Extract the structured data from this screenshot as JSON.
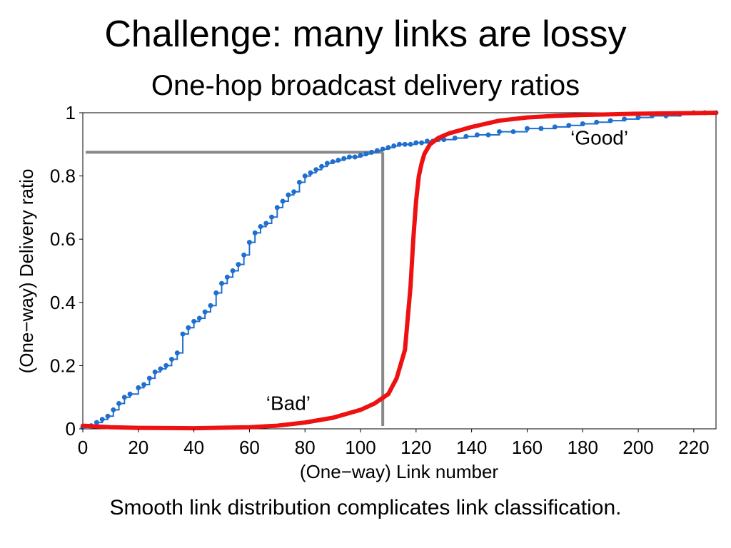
{
  "slide": {
    "title": "Challenge: many links are lossy",
    "subtitle": "One-hop broadcast delivery ratios",
    "caption": "Smooth link distribution complicates link classification."
  },
  "chart_data": {
    "type": "line",
    "xlabel": "(One−way) Link number",
    "ylabel": "(One−way) Delivery ratio",
    "xlim": [
      0,
      228
    ],
    "ylim": [
      0,
      1
    ],
    "xticks": [
      "0",
      "20",
      "40",
      "60",
      "80",
      "100",
      "120",
      "140",
      "160",
      "180",
      "200",
      "220"
    ],
    "yticks": [
      "0",
      "0.2",
      "0.4",
      "0.6",
      "0.8",
      "1"
    ],
    "grid": false,
    "colors": {
      "measured": "#1f6fcf",
      "ideal": "#ee1111",
      "marker": "#888888"
    },
    "series": [
      {
        "name": "",
        "style": "step-dots",
        "x": [
          0,
          3,
          5,
          7,
          9,
          11,
          13,
          15,
          17,
          20,
          22,
          24,
          26,
          28,
          30,
          32,
          34,
          36,
          38,
          40,
          42,
          44,
          46,
          48,
          50,
          52,
          54,
          56,
          58,
          60,
          62,
          64,
          66,
          68,
          70,
          72,
          74,
          76,
          78,
          80,
          82,
          84,
          86,
          88,
          90,
          92,
          94,
          96,
          98,
          100,
          102,
          104,
          106,
          108,
          110,
          112,
          114,
          116,
          118,
          120,
          122,
          124,
          126,
          128,
          130,
          134,
          138,
          142,
          146,
          150,
          155,
          160,
          165,
          170,
          175,
          180,
          185,
          190,
          195,
          200,
          205,
          210,
          215,
          220,
          224,
          228
        ],
        "y": [
          0.005,
          0.01,
          0.02,
          0.03,
          0.04,
          0.06,
          0.08,
          0.1,
          0.11,
          0.13,
          0.14,
          0.16,
          0.18,
          0.19,
          0.2,
          0.22,
          0.24,
          0.3,
          0.32,
          0.34,
          0.35,
          0.37,
          0.39,
          0.43,
          0.46,
          0.48,
          0.5,
          0.52,
          0.55,
          0.59,
          0.62,
          0.64,
          0.65,
          0.67,
          0.7,
          0.72,
          0.74,
          0.75,
          0.78,
          0.8,
          0.81,
          0.82,
          0.83,
          0.84,
          0.845,
          0.85,
          0.855,
          0.86,
          0.86,
          0.865,
          0.87,
          0.875,
          0.88,
          0.885,
          0.89,
          0.895,
          0.9,
          0.9,
          0.9,
          0.905,
          0.905,
          0.91,
          0.91,
          0.915,
          0.915,
          0.92,
          0.925,
          0.93,
          0.93,
          0.94,
          0.94,
          0.95,
          0.95,
          0.955,
          0.96,
          0.965,
          0.97,
          0.975,
          0.98,
          0.985,
          0.99,
          0.99,
          0.995,
          1.0,
          1.0,
          1.0
        ]
      },
      {
        "name": "",
        "style": "thick-line",
        "x": [
          0,
          10,
          20,
          40,
          60,
          70,
          80,
          90,
          100,
          105,
          110,
          113,
          116,
          118,
          119,
          120,
          121,
          122,
          123,
          125,
          128,
          132,
          136,
          140,
          145,
          150,
          160,
          170,
          180,
          190,
          200,
          210,
          220,
          228
        ],
        "y": [
          0.01,
          0.005,
          0.003,
          0.002,
          0.005,
          0.01,
          0.02,
          0.035,
          0.06,
          0.08,
          0.11,
          0.16,
          0.25,
          0.45,
          0.6,
          0.72,
          0.8,
          0.84,
          0.87,
          0.9,
          0.92,
          0.935,
          0.945,
          0.955,
          0.965,
          0.975,
          0.985,
          0.99,
          0.993,
          0.995,
          0.997,
          0.998,
          0.999,
          1.0
        ]
      }
    ],
    "reference": {
      "x": 108,
      "y": 0.875
    },
    "annotations": [
      {
        "text": "‘Good’",
        "x": 186,
        "y": 0.9
      },
      {
        "text": "‘Bad’",
        "x": 74,
        "y": 0.06
      }
    ]
  }
}
